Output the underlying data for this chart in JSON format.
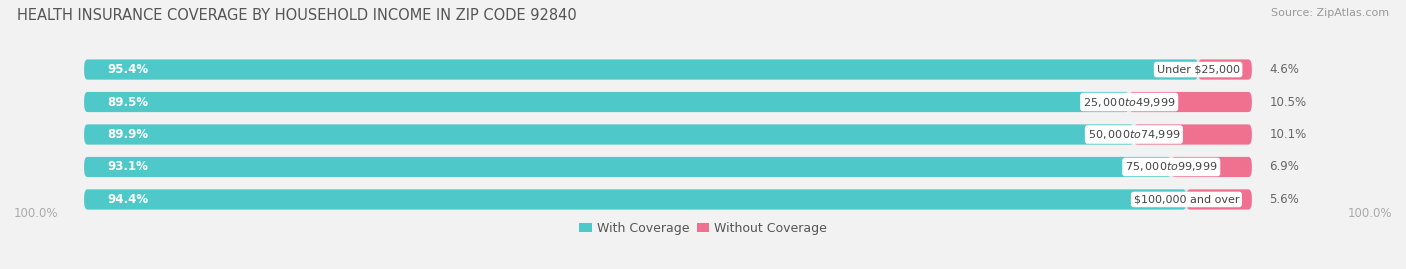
{
  "title": "HEALTH INSURANCE COVERAGE BY HOUSEHOLD INCOME IN ZIP CODE 92840",
  "source": "Source: ZipAtlas.com",
  "categories": [
    "Under $25,000",
    "$25,000 to $49,999",
    "$50,000 to $74,999",
    "$75,000 to $99,999",
    "$100,000 and over"
  ],
  "with_coverage": [
    95.4,
    89.5,
    89.9,
    93.1,
    94.4
  ],
  "without_coverage": [
    4.6,
    10.5,
    10.1,
    6.9,
    5.6
  ],
  "color_with": "#4ec8c8",
  "color_without": "#f07090",
  "bg_color": "#f2f2f2",
  "bar_bg": "#e2e2e2",
  "title_fontsize": 10.5,
  "label_fontsize": 8.5,
  "cat_fontsize": 8.0,
  "tick_fontsize": 8.5,
  "source_fontsize": 8,
  "legend_fontsize": 9,
  "figsize": [
    14.06,
    2.69
  ],
  "dpi": 100
}
